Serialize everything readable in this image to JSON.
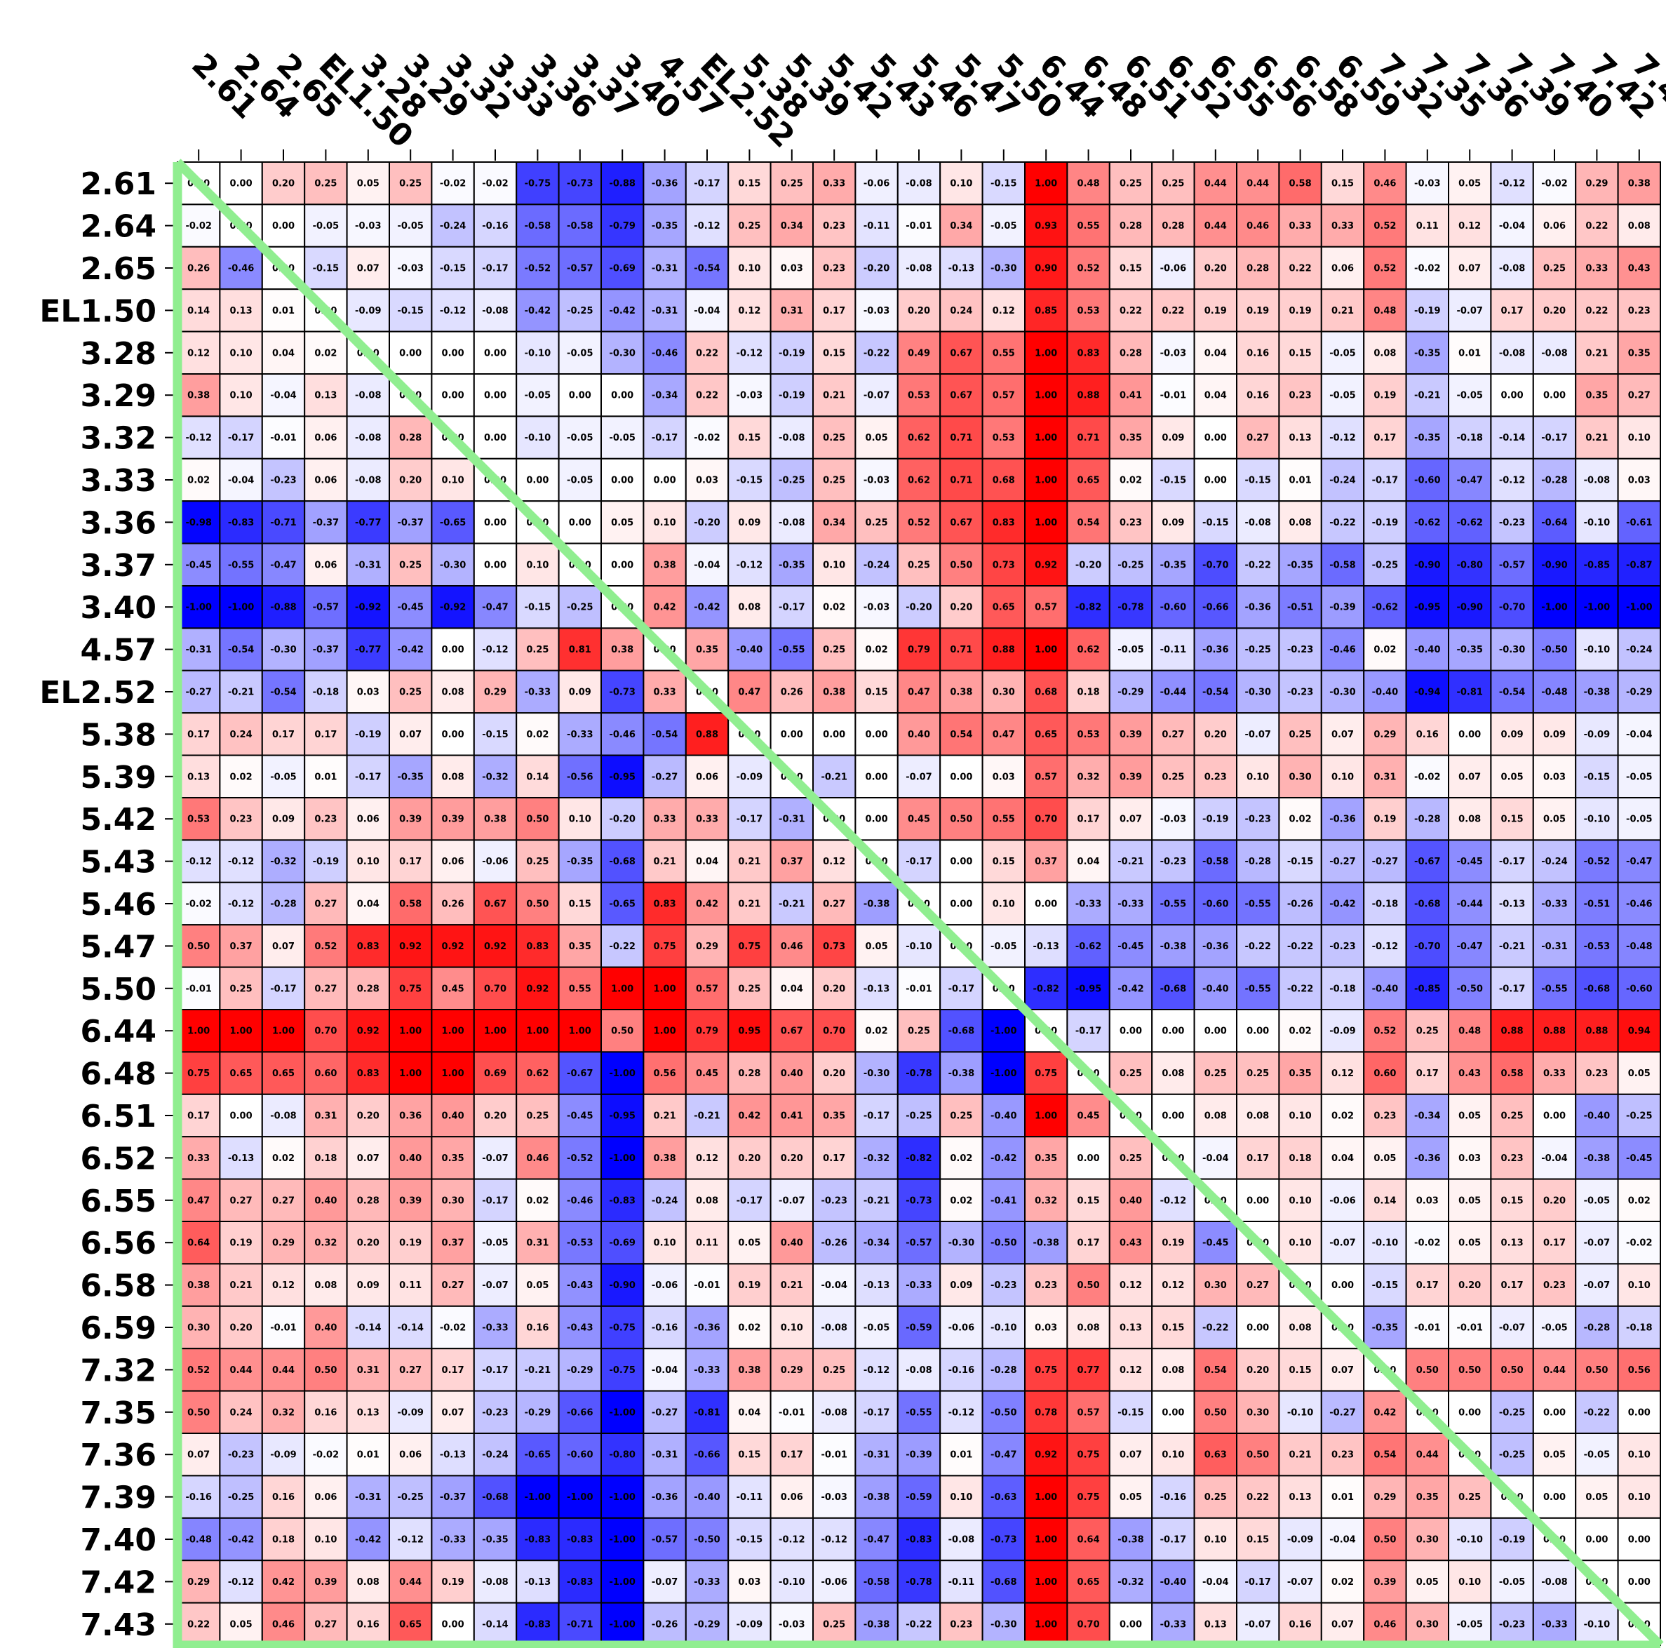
{
  "chart_data": {
    "type": "heatmap",
    "title": "",
    "xlabel": "",
    "ylabel": "",
    "labels": [
      "2.61",
      "2.64",
      "2.65",
      "EL1.50",
      "3.28",
      "3.29",
      "3.32",
      "3.33",
      "3.36",
      "3.37",
      "3.40",
      "4.57",
      "EL2.52",
      "5.38",
      "5.39",
      "5.42",
      "5.43",
      "5.46",
      "5.47",
      "5.50",
      "6.44",
      "6.48",
      "6.51",
      "6.52",
      "6.55",
      "6.56",
      "6.58",
      "6.59",
      "7.32",
      "7.35",
      "7.36",
      "7.39",
      "7.40",
      "7.42",
      "7.43"
    ],
    "value_range": [
      -1,
      1
    ],
    "colormap": "bwr",
    "colors": {
      "low": "#0000ff",
      "mid": "#ffffff",
      "high": "#ff0000",
      "diagonal": "#90ee90",
      "grid": "#000000"
    },
    "values": [
      [
        0.0,
        0.0,
        0.2,
        0.25,
        0.05,
        0.25,
        -0.02,
        -0.02,
        -0.75,
        -0.73,
        -0.88,
        -0.36,
        -0.17,
        0.15,
        0.25,
        0.33,
        -0.06,
        -0.08,
        0.1,
        -0.15,
        1.0,
        0.48,
        0.25,
        0.25,
        0.44,
        0.44,
        0.58,
        0.15,
        0.46,
        -0.03,
        0.05,
        -0.12,
        -0.02,
        0.29,
        0.38
      ],
      [
        -0.02,
        0.0,
        0.0,
        -0.05,
        -0.03,
        -0.05,
        -0.24,
        -0.16,
        -0.58,
        -0.58,
        -0.79,
        -0.35,
        -0.12,
        0.25,
        0.34,
        0.23,
        -0.11,
        -0.01,
        0.34,
        -0.05,
        0.93,
        0.55,
        0.28,
        0.28,
        0.44,
        0.46,
        0.33,
        0.33,
        0.52,
        0.11,
        0.12,
        -0.04,
        0.06,
        0.22,
        0.08
      ],
      [
        0.26,
        -0.46,
        0.0,
        -0.15,
        0.07,
        -0.03,
        -0.15,
        -0.17,
        -0.52,
        -0.57,
        -0.69,
        -0.31,
        -0.54,
        0.1,
        0.03,
        0.23,
        -0.2,
        -0.08,
        -0.13,
        -0.3,
        0.9,
        0.52,
        0.15,
        -0.06,
        0.2,
        0.28,
        0.22,
        0.06,
        0.52,
        -0.02,
        0.07,
        -0.08,
        0.25,
        0.33,
        0.43
      ],
      [
        0.14,
        0.13,
        0.01,
        0.0,
        -0.09,
        -0.15,
        -0.12,
        -0.08,
        -0.42,
        -0.25,
        -0.42,
        -0.31,
        -0.04,
        0.12,
        0.31,
        0.17,
        -0.03,
        0.2,
        0.24,
        0.12,
        0.85,
        0.53,
        0.22,
        0.22,
        0.19,
        0.19,
        0.19,
        0.21,
        0.48,
        -0.19,
        -0.07,
        0.17,
        0.2,
        0.22,
        0.23
      ],
      [
        0.12,
        0.1,
        0.04,
        0.02,
        0.0,
        0.0,
        0.0,
        0.0,
        -0.1,
        -0.05,
        -0.3,
        -0.46,
        0.22,
        -0.12,
        -0.19,
        0.15,
        -0.22,
        0.49,
        0.67,
        0.55,
        1.0,
        0.83,
        0.28,
        -0.03,
        0.04,
        0.16,
        0.15,
        -0.05,
        0.08,
        -0.35,
        0.01,
        -0.08,
        -0.08,
        0.21,
        0.35
      ],
      [
        0.38,
        0.1,
        -0.04,
        0.13,
        -0.08,
        0.0,
        0.0,
        0.0,
        -0.05,
        0.0,
        0.0,
        -0.34,
        0.22,
        -0.03,
        -0.19,
        0.21,
        -0.07,
        0.53,
        0.67,
        0.57,
        1.0,
        0.88,
        0.41,
        -0.01,
        0.04,
        0.16,
        0.23,
        -0.05,
        0.19,
        -0.21,
        -0.05,
        0.0,
        0.0,
        0.35,
        0.27
      ],
      [
        -0.12,
        -0.17,
        -0.01,
        0.06,
        -0.08,
        0.28,
        0.0,
        0.0,
        -0.1,
        -0.05,
        -0.05,
        -0.17,
        -0.02,
        0.15,
        -0.08,
        0.25,
        0.05,
        0.62,
        0.71,
        0.53,
        1.0,
        0.71,
        0.35,
        0.09,
        0.0,
        0.27,
        0.13,
        -0.12,
        0.17,
        -0.35,
        -0.18,
        -0.14,
        -0.17,
        0.21,
        0.1
      ],
      [
        0.02,
        -0.04,
        -0.23,
        0.06,
        -0.08,
        0.2,
        0.1,
        0.0,
        0.0,
        -0.05,
        0.0,
        0.0,
        0.03,
        -0.15,
        -0.25,
        0.25,
        -0.03,
        0.62,
        0.71,
        0.68,
        1.0,
        0.65,
        0.02,
        -0.15,
        0.0,
        -0.15,
        0.01,
        -0.24,
        -0.17,
        -0.6,
        -0.47,
        -0.12,
        -0.28,
        -0.08,
        0.03
      ],
      [
        -0.98,
        -0.83,
        -0.71,
        -0.37,
        -0.77,
        -0.37,
        -0.65,
        0.0,
        0.0,
        0.0,
        0.05,
        0.1,
        -0.2,
        0.09,
        -0.08,
        0.34,
        0.25,
        0.52,
        0.67,
        0.83,
        1.0,
        0.54,
        0.23,
        0.09,
        -0.15,
        -0.08,
        0.08,
        -0.22,
        -0.19,
        -0.62,
        -0.62,
        -0.23,
        -0.64,
        -0.1,
        -0.61
      ],
      [
        -0.45,
        -0.55,
        -0.47,
        0.06,
        -0.31,
        0.25,
        -0.3,
        0.0,
        0.1,
        0.0,
        0.0,
        0.38,
        -0.04,
        -0.12,
        -0.35,
        0.1,
        -0.24,
        0.25,
        0.5,
        0.73,
        0.92,
        -0.2,
        -0.25,
        -0.35,
        -0.7,
        -0.22,
        -0.35,
        -0.58,
        -0.25,
        -0.9,
        -0.8,
        -0.57,
        -0.9,
        -0.85,
        -0.87
      ],
      [
        -1.0,
        -1.0,
        -0.88,
        -0.57,
        -0.92,
        -0.45,
        -0.92,
        -0.47,
        -0.15,
        -0.25,
        0.0,
        0.42,
        -0.42,
        0.08,
        -0.17,
        0.02,
        -0.03,
        -0.2,
        0.2,
        0.65,
        0.57,
        -0.82,
        -0.78,
        -0.6,
        -0.66,
        -0.36,
        -0.51,
        -0.39,
        -0.62,
        -0.95,
        -0.9,
        -0.7,
        -1.0,
        -1.0,
        -1.0
      ],
      [
        -0.31,
        -0.54,
        -0.3,
        -0.37,
        -0.77,
        -0.42,
        0.0,
        -0.12,
        0.25,
        0.81,
        0.38,
        0.0,
        0.35,
        -0.4,
        -0.55,
        0.25,
        0.02,
        0.79,
        0.71,
        0.88,
        1.0,
        0.62,
        -0.05,
        -0.11,
        -0.36,
        -0.25,
        -0.23,
        -0.46,
        0.02,
        -0.4,
        -0.35,
        -0.3,
        -0.5,
        -0.1,
        -0.24
      ],
      [
        -0.27,
        -0.21,
        -0.54,
        -0.18,
        0.03,
        0.25,
        0.08,
        0.29,
        -0.33,
        0.09,
        -0.73,
        0.33,
        0.0,
        0.47,
        0.26,
        0.38,
        0.15,
        0.47,
        0.38,
        0.3,
        0.68,
        0.18,
        -0.29,
        -0.44,
        -0.54,
        -0.3,
        -0.23,
        -0.3,
        -0.4,
        -0.94,
        -0.81,
        -0.54,
        -0.48,
        -0.38,
        -0.29
      ],
      [
        0.17,
        0.24,
        0.17,
        0.17,
        -0.19,
        0.07,
        0.0,
        -0.15,
        0.02,
        -0.33,
        -0.46,
        -0.54,
        0.88,
        0.0,
        0.0,
        0.0,
        0.0,
        0.4,
        0.54,
        0.47,
        0.65,
        0.53,
        0.39,
        0.27,
        0.2,
        -0.07,
        0.25,
        0.07,
        0.29,
        0.16,
        0.0,
        0.09,
        0.09,
        -0.09,
        -0.04
      ],
      [
        0.13,
        0.02,
        -0.05,
        0.01,
        -0.17,
        -0.35,
        0.08,
        -0.32,
        0.14,
        -0.56,
        -0.95,
        -0.27,
        0.06,
        -0.09,
        0.0,
        -0.21,
        0.0,
        -0.07,
        0.0,
        0.03,
        0.57,
        0.32,
        0.39,
        0.25,
        0.23,
        0.1,
        0.3,
        0.1,
        0.31,
        -0.02,
        0.07,
        0.05,
        0.03,
        -0.15,
        -0.05
      ],
      [
        0.53,
        0.23,
        0.09,
        0.23,
        0.06,
        0.39,
        0.39,
        0.38,
        0.5,
        0.1,
        -0.2,
        0.33,
        0.33,
        -0.17,
        -0.31,
        0.0,
        0.0,
        0.45,
        0.5,
        0.55,
        0.7,
        0.17,
        0.07,
        -0.03,
        -0.19,
        -0.23,
        0.02,
        -0.36,
        0.19,
        -0.28,
        0.08,
        0.15,
        0.05,
        -0.1,
        -0.05
      ],
      [
        -0.12,
        -0.12,
        -0.32,
        -0.19,
        0.1,
        0.17,
        0.06,
        -0.06,
        0.25,
        -0.35,
        -0.68,
        0.21,
        0.04,
        0.21,
        0.37,
        0.12,
        0.0,
        -0.17,
        0.0,
        0.15,
        0.37,
        0.04,
        -0.21,
        -0.23,
        -0.58,
        -0.28,
        -0.15,
        -0.27,
        -0.27,
        -0.67,
        -0.45,
        -0.17,
        -0.24,
        -0.52,
        -0.47
      ],
      [
        -0.02,
        -0.12,
        -0.28,
        0.27,
        0.04,
        0.58,
        0.26,
        0.67,
        0.5,
        0.15,
        -0.65,
        0.83,
        0.42,
        0.21,
        -0.21,
        0.27,
        -0.38,
        0.0,
        0.0,
        0.1,
        0.0,
        -0.33,
        -0.33,
        -0.55,
        -0.6,
        -0.55,
        -0.26,
        -0.42,
        -0.18,
        -0.68,
        -0.44,
        -0.13,
        -0.33,
        -0.51,
        -0.46
      ],
      [
        0.5,
        0.37,
        0.07,
        0.52,
        0.83,
        0.92,
        0.92,
        0.92,
        0.83,
        0.35,
        -0.22,
        0.75,
        0.29,
        0.75,
        0.46,
        0.73,
        0.05,
        -0.1,
        0.0,
        -0.05,
        -0.13,
        -0.62,
        -0.45,
        -0.38,
        -0.36,
        -0.22,
        -0.22,
        -0.23,
        -0.12,
        -0.7,
        -0.47,
        -0.21,
        -0.31,
        -0.53,
        -0.48
      ],
      [
        -0.01,
        0.25,
        -0.17,
        0.27,
        0.28,
        0.75,
        0.45,
        0.7,
        0.92,
        0.55,
        1.0,
        1.0,
        0.57,
        0.25,
        0.04,
        0.2,
        -0.13,
        -0.01,
        -0.17,
        0.0,
        -0.82,
        -0.95,
        -0.42,
        -0.68,
        -0.4,
        -0.55,
        -0.22,
        -0.18,
        -0.4,
        -0.85,
        -0.5,
        -0.17,
        -0.55,
        -0.68,
        -0.6
      ],
      [
        1.0,
        1.0,
        1.0,
        0.7,
        0.92,
        1.0,
        1.0,
        1.0,
        1.0,
        1.0,
        0.5,
        1.0,
        0.79,
        0.95,
        0.67,
        0.7,
        0.02,
        0.25,
        -0.68,
        -1.0,
        0.0,
        -0.17,
        0.0,
        0.0,
        0.0,
        0.0,
        0.02,
        -0.09,
        0.52,
        0.25,
        0.48,
        0.88,
        0.88,
        0.88,
        0.94
      ],
      [
        0.75,
        0.65,
        0.65,
        0.6,
        0.83,
        1.0,
        1.0,
        0.69,
        0.62,
        -0.67,
        -1.0,
        0.56,
        0.45,
        0.28,
        0.4,
        0.2,
        -0.3,
        -0.78,
        -0.38,
        -1.0,
        0.75,
        0.0,
        0.25,
        0.08,
        0.25,
        0.25,
        0.35,
        0.12,
        0.6,
        0.17,
        0.43,
        0.58,
        0.33,
        0.23,
        0.05
      ],
      [
        0.17,
        0.0,
        -0.08,
        0.31,
        0.2,
        0.36,
        0.4,
        0.2,
        0.25,
        -0.45,
        -0.95,
        0.21,
        -0.21,
        0.42,
        0.41,
        0.35,
        -0.17,
        -0.25,
        0.25,
        -0.4,
        1.0,
        0.45,
        0.0,
        0.0,
        0.08,
        0.08,
        0.1,
        0.02,
        0.23,
        -0.34,
        0.05,
        0.25,
        0.0,
        -0.4,
        -0.25
      ],
      [
        0.33,
        -0.13,
        0.02,
        0.18,
        0.07,
        0.4,
        0.35,
        -0.07,
        0.46,
        -0.52,
        -1.0,
        0.38,
        0.12,
        0.2,
        0.2,
        0.17,
        -0.32,
        -0.82,
        0.02,
        -0.42,
        0.35,
        0.0,
        0.25,
        0.0,
        -0.04,
        0.17,
        0.18,
        0.04,
        0.05,
        -0.36,
        0.03,
        0.23,
        -0.04,
        -0.38,
        -0.45
      ],
      [
        0.47,
        0.27,
        0.27,
        0.4,
        0.28,
        0.39,
        0.3,
        -0.17,
        0.02,
        -0.46,
        -0.83,
        -0.24,
        0.08,
        -0.17,
        -0.07,
        -0.23,
        -0.21,
        -0.73,
        0.02,
        -0.41,
        0.32,
        0.15,
        0.4,
        -0.12,
        0.0,
        0.0,
        0.1,
        -0.06,
        0.14,
        0.03,
        0.05,
        0.15,
        0.2,
        -0.05,
        0.02
      ],
      [
        0.64,
        0.19,
        0.29,
        0.32,
        0.2,
        0.19,
        0.37,
        -0.05,
        0.31,
        -0.53,
        -0.69,
        0.1,
        0.11,
        0.05,
        0.4,
        -0.26,
        -0.34,
        -0.57,
        -0.3,
        -0.5,
        -0.38,
        0.17,
        0.43,
        0.19,
        -0.45,
        0.0,
        0.1,
        -0.07,
        -0.1,
        -0.02,
        0.05,
        0.13,
        0.17,
        -0.07,
        -0.02
      ],
      [
        0.38,
        0.21,
        0.12,
        0.08,
        0.09,
        0.11,
        0.27,
        -0.07,
        0.05,
        -0.43,
        -0.9,
        -0.06,
        -0.01,
        0.19,
        0.21,
        -0.04,
        -0.13,
        -0.33,
        0.09,
        -0.23,
        0.23,
        0.5,
        0.12,
        0.12,
        0.3,
        0.27,
        0.0,
        0.0,
        -0.15,
        0.17,
        0.2,
        0.17,
        0.23,
        -0.07,
        0.1
      ],
      [
        0.3,
        0.2,
        -0.01,
        0.4,
        -0.14,
        -0.14,
        -0.02,
        -0.33,
        0.16,
        -0.43,
        -0.75,
        -0.16,
        -0.36,
        0.02,
        0.1,
        -0.08,
        -0.05,
        -0.59,
        -0.06,
        -0.1,
        0.03,
        0.08,
        0.13,
        0.15,
        -0.22,
        0.0,
        0.08,
        0.0,
        -0.35,
        -0.01,
        -0.01,
        -0.07,
        -0.05,
        -0.28,
        -0.18
      ],
      [
        0.52,
        0.44,
        0.44,
        0.5,
        0.31,
        0.27,
        0.17,
        -0.17,
        -0.21,
        -0.29,
        -0.75,
        -0.04,
        -0.33,
        0.38,
        0.29,
        0.25,
        -0.12,
        -0.08,
        -0.16,
        -0.28,
        0.75,
        0.77,
        0.12,
        0.08,
        0.54,
        0.2,
        0.15,
        0.07,
        0.0,
        0.5,
        0.5,
        0.5,
        0.44,
        0.5,
        0.56
      ],
      [
        0.5,
        0.24,
        0.32,
        0.16,
        0.13,
        -0.09,
        0.07,
        -0.23,
        -0.29,
        -0.66,
        -1.0,
        -0.27,
        -0.81,
        0.04,
        -0.01,
        -0.08,
        -0.17,
        -0.55,
        -0.12,
        -0.5,
        0.78,
        0.57,
        -0.15,
        -0.0,
        0.5,
        0.3,
        -0.1,
        -0.27,
        0.42,
        0.0,
        0.0,
        -0.25,
        0.0,
        -0.22,
        0.0
      ],
      [
        0.07,
        -0.23,
        -0.09,
        -0.02,
        0.01,
        0.06,
        -0.13,
        -0.24,
        -0.65,
        -0.6,
        -0.8,
        -0.31,
        -0.66,
        0.15,
        0.17,
        -0.01,
        -0.31,
        -0.39,
        0.01,
        -0.47,
        0.92,
        0.75,
        0.07,
        0.1,
        0.63,
        0.5,
        0.21,
        0.23,
        0.54,
        0.44,
        0.0,
        -0.25,
        0.05,
        -0.05,
        0.1
      ],
      [
        -0.16,
        -0.25,
        0.16,
        0.06,
        -0.31,
        -0.25,
        -0.37,
        -0.68,
        -1.0,
        -1.0,
        -1.0,
        -0.36,
        -0.4,
        -0.11,
        0.06,
        -0.03,
        -0.38,
        -0.59,
        0.1,
        -0.63,
        1.0,
        0.75,
        0.05,
        -0.16,
        0.25,
        0.22,
        0.13,
        0.01,
        0.29,
        0.35,
        0.25,
        0.0,
        0.0,
        0.05,
        0.1
      ],
      [
        -0.48,
        -0.42,
        0.18,
        0.1,
        -0.42,
        -0.12,
        -0.33,
        -0.35,
        -0.83,
        -0.83,
        -1.0,
        -0.57,
        -0.5,
        -0.15,
        -0.12,
        -0.12,
        -0.47,
        -0.83,
        -0.08,
        -0.73,
        1.0,
        0.64,
        -0.38,
        -0.17,
        0.1,
        0.15,
        -0.09,
        -0.04,
        0.5,
        0.3,
        -0.1,
        -0.19,
        0.0,
        0.0,
        0.0
      ],
      [
        0.29,
        -0.12,
        0.42,
        0.39,
        0.08,
        0.44,
        0.19,
        -0.08,
        -0.13,
        -0.83,
        -1.0,
        -0.07,
        -0.33,
        0.03,
        -0.1,
        -0.06,
        -0.58,
        -0.78,
        -0.11,
        -0.68,
        1.0,
        0.65,
        -0.32,
        -0.4,
        -0.04,
        -0.17,
        -0.07,
        0.02,
        0.39,
        0.05,
        0.1,
        -0.05,
        -0.08,
        0.0,
        0.0
      ],
      [
        0.22,
        0.05,
        0.46,
        0.27,
        0.16,
        0.65,
        0.0,
        -0.14,
        -0.83,
        -0.71,
        -1.0,
        -0.26,
        -0.29,
        -0.09,
        -0.03,
        0.25,
        -0.38,
        -0.22,
        0.23,
        -0.3,
        1.0,
        0.7,
        0.0,
        -0.33,
        0.13,
        -0.07,
        0.16,
        0.07,
        0.46,
        0.3,
        -0.05,
        -0.23,
        -0.33,
        -0.1,
        0.0
      ]
    ]
  }
}
